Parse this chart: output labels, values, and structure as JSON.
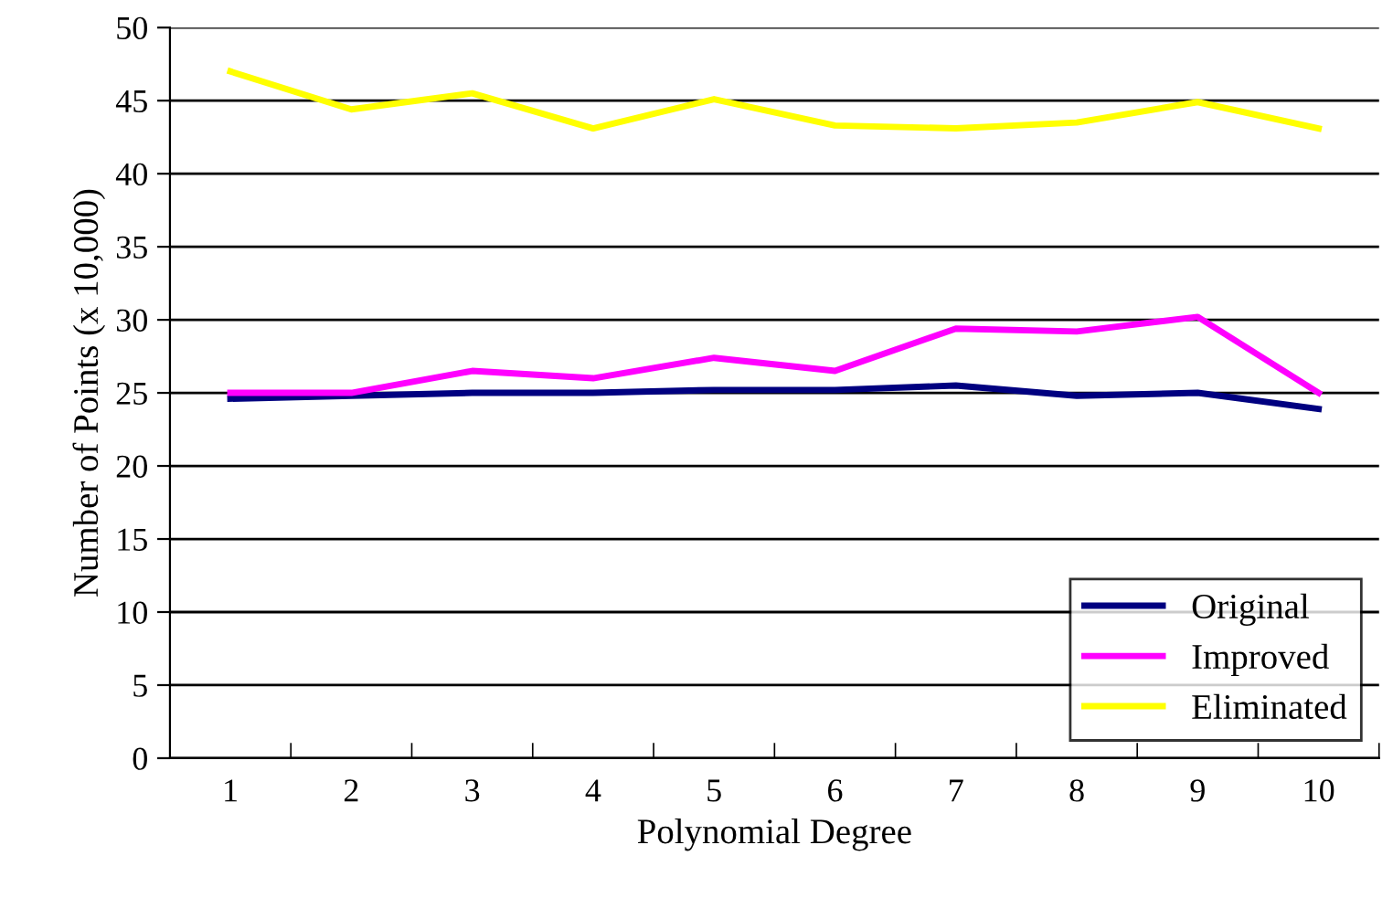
{
  "chart_data": {
    "type": "line",
    "xlabel": "Polynomial Degree",
    "ylabel": "Number of Points (x 10,000)",
    "categories": [
      "1",
      "2",
      "3",
      "4",
      "5",
      "6",
      "7",
      "8",
      "9",
      "10"
    ],
    "series": [
      {
        "name": "Original",
        "color": "#000080",
        "values": [
          24.6,
          24.8,
          25,
          25,
          25.2,
          25.2,
          25.5,
          24.8,
          25,
          23.9
        ]
      },
      {
        "name": "Improved",
        "color": "#ff00ff",
        "values": [
          25,
          25,
          26.5,
          26,
          27.4,
          26.5,
          29.4,
          29.2,
          30.2,
          25
        ]
      },
      {
        "name": "Eliminated",
        "color": "#ffff00",
        "values": [
          47,
          44.4,
          45.5,
          43.1,
          45.1,
          43.3,
          43.1,
          43.5,
          44.9,
          43.1
        ]
      }
    ],
    "ylim": [
      0,
      50
    ],
    "yticks": [
      0,
      5,
      10,
      15,
      20,
      25,
      30,
      35,
      40,
      45,
      50
    ],
    "grid": "y",
    "legend": "bottom right",
    "marker": "none",
    "line_style": "solid"
  }
}
